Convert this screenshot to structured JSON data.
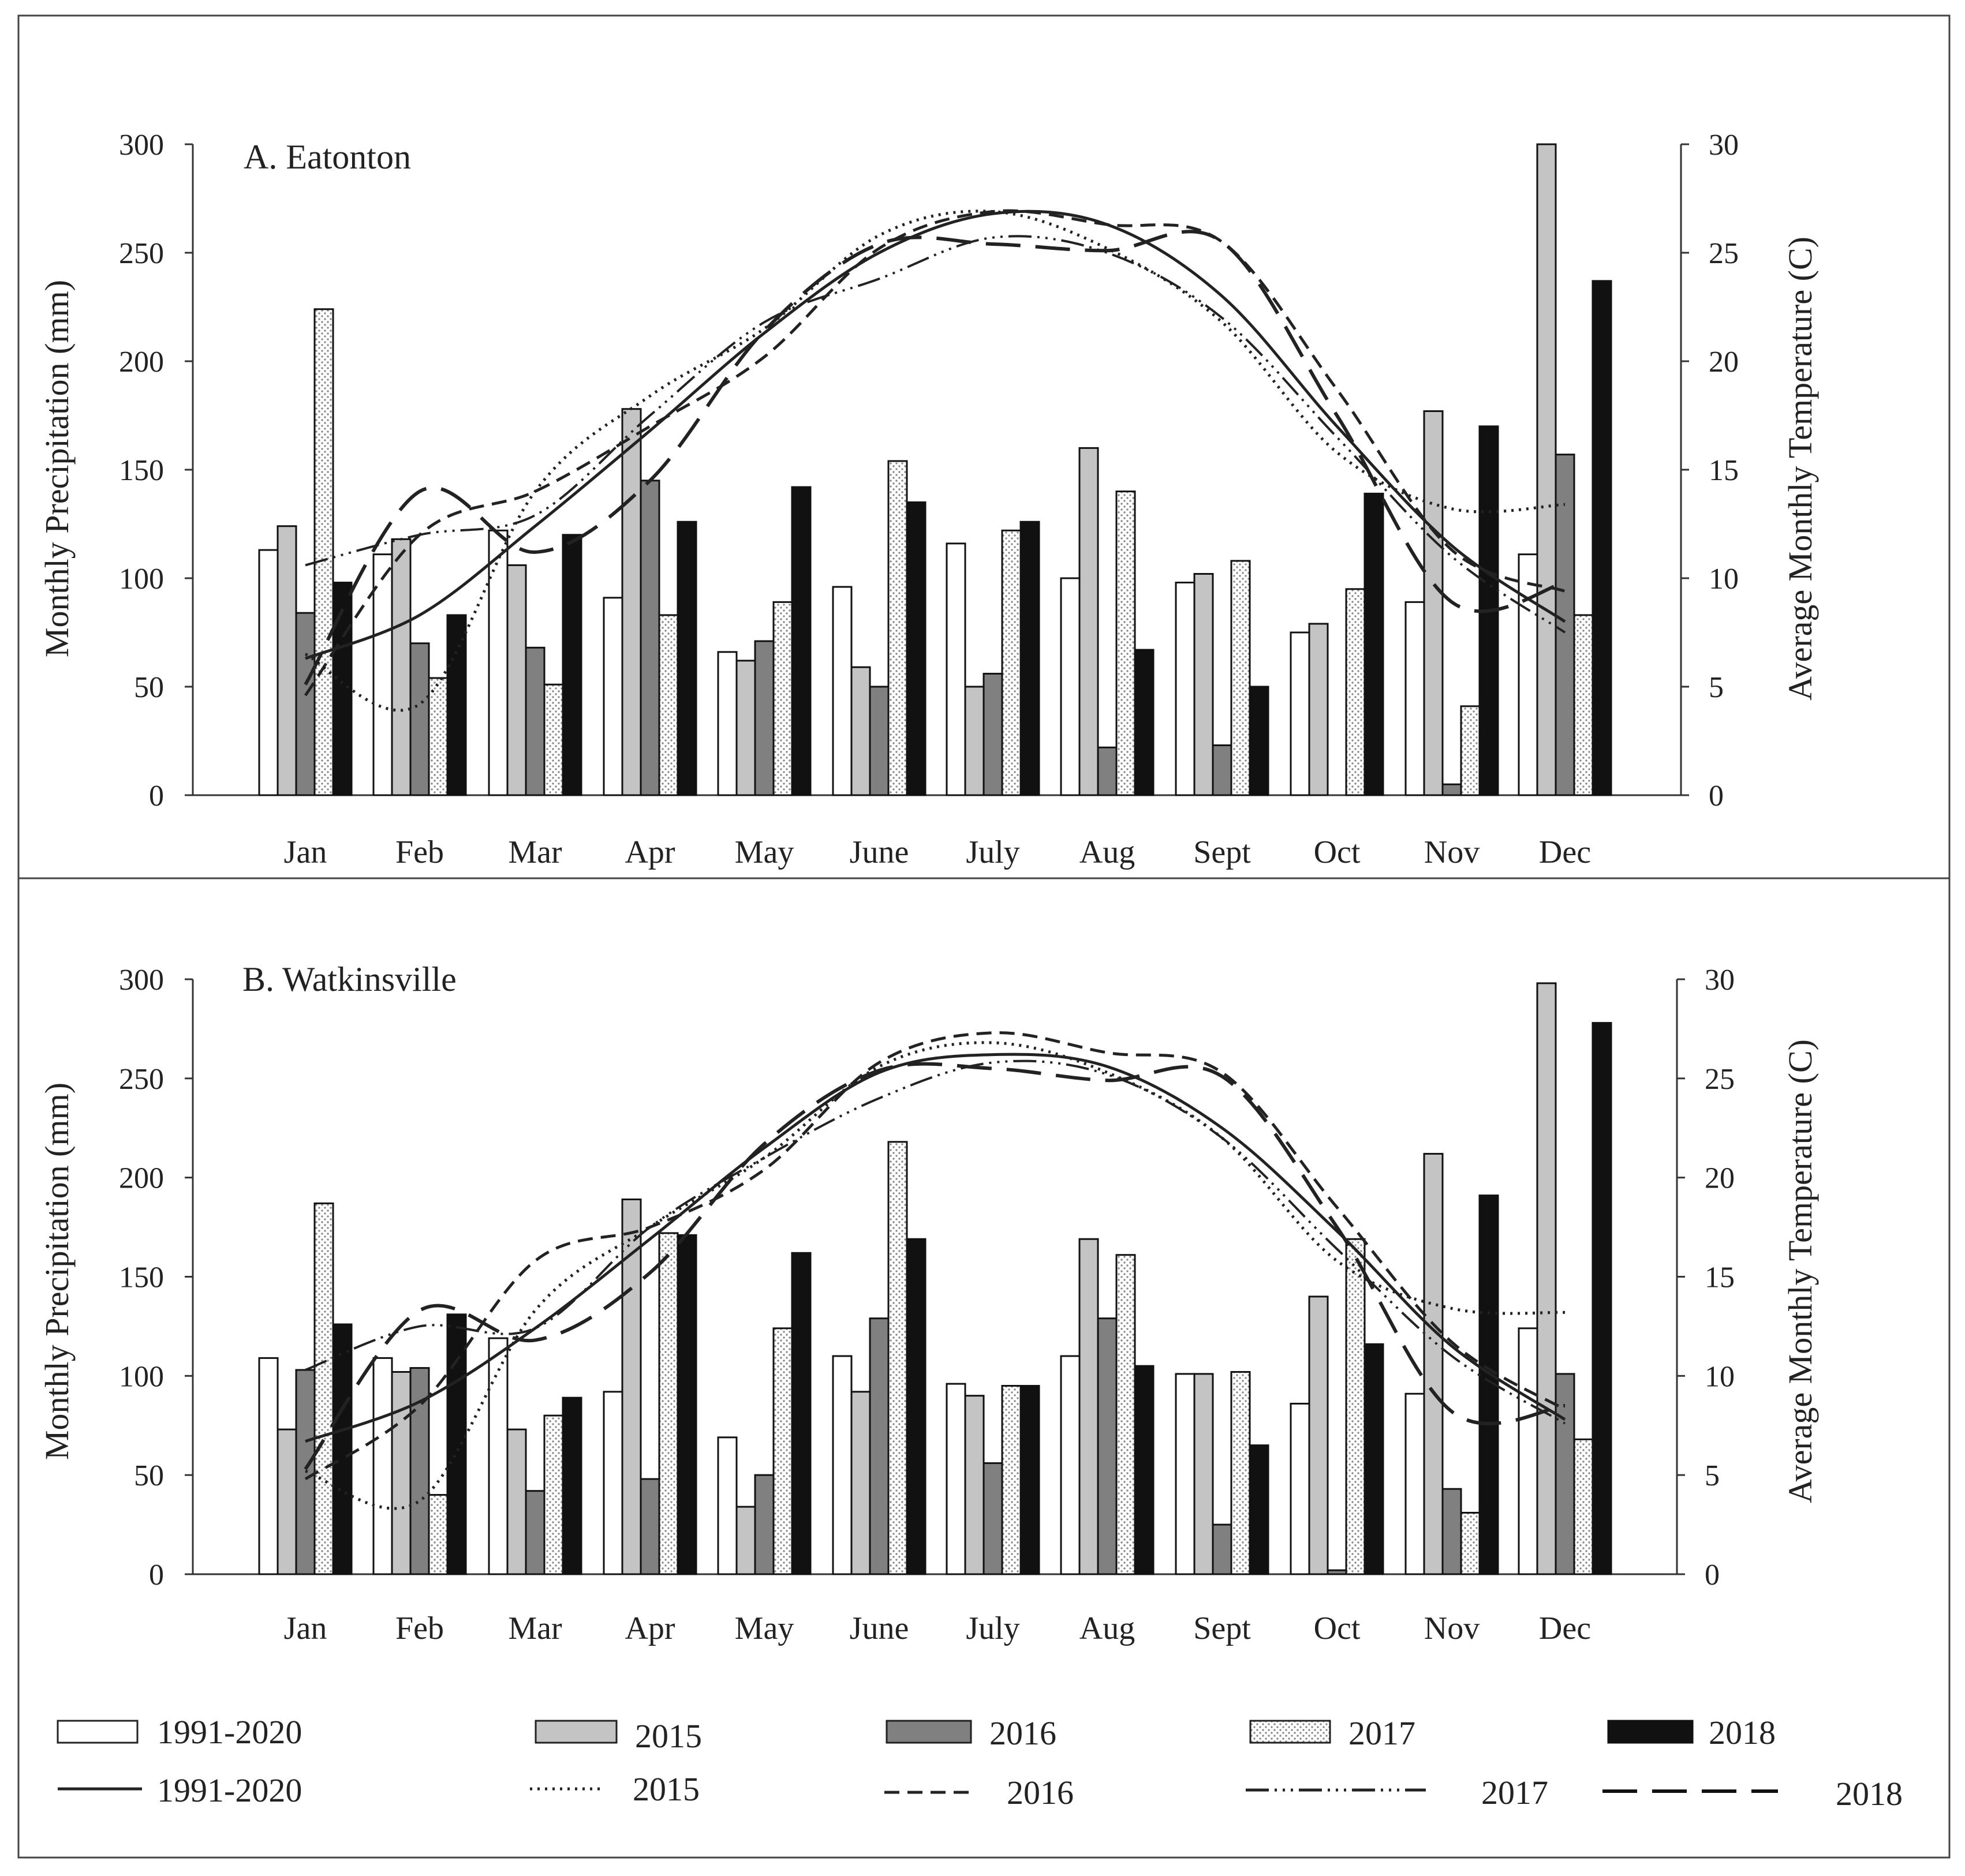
{
  "chart_data": [
    {
      "type": "bar",
      "title": "A. Eatonton",
      "ylabel": "Monthly Precipitation (mm)",
      "y2label": "Average Monthly Temperature (C)",
      "ylim": [
        0,
        300
      ],
      "y2lim": [
        0,
        30
      ],
      "yticks": [
        "0",
        "50",
        "100",
        "150",
        "200",
        "250",
        "300"
      ],
      "y2ticks": [
        "0",
        "5",
        "10",
        "15",
        "20",
        "25",
        "30"
      ],
      "categories": [
        "Jan",
        "Feb",
        "Mar",
        "Apr",
        "May",
        "June",
        "July",
        "Aug",
        "Sept",
        "Oct",
        "Nov",
        "Dec"
      ],
      "series": [
        {
          "name": "1991-2020",
          "values": [
            113,
            111,
            122,
            91,
            66,
            96,
            116,
            100,
            98,
            75,
            89,
            111
          ]
        },
        {
          "name": "2015",
          "values": [
            124,
            118,
            106,
            178,
            62,
            59,
            50,
            160,
            102,
            79,
            177,
            300
          ]
        },
        {
          "name": "2016",
          "values": [
            84,
            70,
            68,
            145,
            71,
            50,
            56,
            22,
            23,
            0,
            5,
            157
          ]
        },
        {
          "name": "2017",
          "values": [
            224,
            54,
            51,
            83,
            89,
            154,
            122,
            140,
            108,
            95,
            41,
            83
          ]
        },
        {
          "name": "2018",
          "values": [
            98,
            83,
            120,
            126,
            142,
            135,
            126,
            67,
            50,
            139,
            170,
            237
          ]
        }
      ],
      "temperature_series": [
        {
          "name": "1991-2020",
          "values": [
            6.3,
            8.3,
            12.4,
            16.8,
            21.3,
            25.0,
            26.8,
            26.3,
            23.0,
            17.0,
            11.5,
            8.0
          ]
        },
        {
          "name": "2015",
          "values": [
            6.5,
            4.2,
            14.0,
            18.4,
            21.5,
            25.8,
            26.9,
            25.2,
            21.8,
            15.8,
            13.2,
            13.4
          ]
        },
        {
          "name": "2016",
          "values": [
            4.6,
            12.0,
            14.0,
            17.0,
            20.2,
            25.2,
            26.9,
            26.3,
            25.5,
            18.7,
            11.3,
            9.4
          ]
        },
        {
          "name": "2017",
          "values": [
            10.6,
            12.0,
            12.9,
            17.5,
            21.8,
            23.8,
            25.7,
            25.0,
            22.0,
            16.5,
            11.0,
            7.5
          ]
        },
        {
          "name": "2018",
          "values": [
            5.1,
            14.0,
            11.2,
            14.5,
            21.4,
            25.4,
            25.4,
            25.1,
            25.5,
            17.5,
            8.9,
            9.8
          ]
        }
      ]
    },
    {
      "type": "bar",
      "title": "B. Watkinsville",
      "ylabel": "Monthly Precipitation (mm)",
      "y2label": "Average Monthly Temperature (C)",
      "ylim": [
        0,
        300
      ],
      "y2lim": [
        0,
        30
      ],
      "yticks": [
        "0",
        "50",
        "100",
        "150",
        "200",
        "250",
        "300"
      ],
      "y2ticks": [
        "0",
        "5",
        "10",
        "15",
        "20",
        "25",
        "30"
      ],
      "categories": [
        "Jan",
        "Feb",
        "Mar",
        "Apr",
        "May",
        "June",
        "July",
        "Aug",
        "Sept",
        "Oct",
        "Nov",
        "Dec"
      ],
      "series": [
        {
          "name": "1991-2020",
          "values": [
            109,
            109,
            119,
            92,
            69,
            110,
            96,
            110,
            101,
            86,
            91,
            124
          ]
        },
        {
          "name": "2015",
          "values": [
            73,
            102,
            73,
            189,
            34,
            92,
            90,
            169,
            101,
            140,
            212,
            298
          ]
        },
        {
          "name": "2016",
          "values": [
            103,
            104,
            42,
            48,
            50,
            129,
            56,
            129,
            25,
            2,
            43,
            101
          ]
        },
        {
          "name": "2017",
          "values": [
            187,
            40,
            80,
            172,
            124,
            218,
            95,
            161,
            102,
            169,
            31,
            68
          ]
        },
        {
          "name": "2018",
          "values": [
            126,
            131,
            89,
            171,
            162,
            169,
            95,
            105,
            65,
            116,
            191,
            278
          ]
        }
      ],
      "temperature_series": [
        {
          "name": "1991-2020",
          "values": [
            6.7,
            8.7,
            12.4,
            16.9,
            21.5,
            25.3,
            26.2,
            25.6,
            22.5,
            17.3,
            11.5,
            7.8
          ]
        },
        {
          "name": "2015",
          "values": [
            5.2,
            3.7,
            13.3,
            17.5,
            21.0,
            25.6,
            26.8,
            25.3,
            22.0,
            15.8,
            13.4,
            13.2
          ]
        },
        {
          "name": "2016",
          "values": [
            4.8,
            8.5,
            15.8,
            17.5,
            20.4,
            25.8,
            27.3,
            26.3,
            25.3,
            18.5,
            11.7,
            8.3
          ]
        },
        {
          "name": "2017",
          "values": [
            10.3,
            12.5,
            12.4,
            17.5,
            21.0,
            24.0,
            25.8,
            25.2,
            22.0,
            16.4,
            11.0,
            7.6
          ]
        },
        {
          "name": "2018",
          "values": [
            5.3,
            13.3,
            11.8,
            15.2,
            21.7,
            25.4,
            25.5,
            24.9,
            25.1,
            17.5,
            8.2,
            8.5
          ]
        }
      ]
    }
  ],
  "legend": {
    "bars": [
      "1991-2020",
      "2015",
      "2016",
      "2017",
      "2018"
    ],
    "lines": [
      "1991-2020",
      "2015",
      "2016",
      "2017",
      "2018"
    ]
  },
  "colors": {
    "bar_1991_2020": "#ffffff",
    "bar_2015": "#c4c4c4",
    "bar_2016": "#808080",
    "bar_2017_dots": "#8a8a8a",
    "bar_2018": "#111111",
    "line": "#222222"
  }
}
